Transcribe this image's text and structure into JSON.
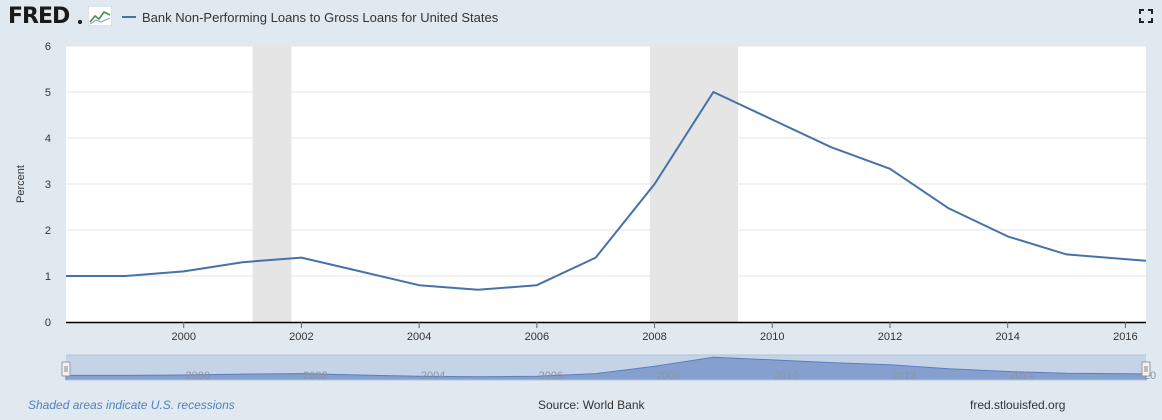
{
  "header": {
    "logo_text": "FRED",
    "legend_label": "Bank Non-Performing Loans to Gross Loans for United States"
  },
  "colors": {
    "series": "#4572a7",
    "recession": "#e5e5e5",
    "background": "#e1e9f0",
    "navigator_fill": "#c5d3e8",
    "navigator_area": "#6f8fc6"
  },
  "icons": [
    "fred-chart-icon",
    "fullscreen-icon"
  ],
  "footer": {
    "recession_note": "Shaded areas indicate U.S. recessions",
    "source": "Source: World Bank",
    "site": "fred.stlouisfed.org"
  },
  "chart_data": {
    "type": "line",
    "title": "",
    "xlabel": "",
    "ylabel": "Percent",
    "xlim": [
      1998,
      2016.35
    ],
    "ylim": [
      0,
      6
    ],
    "yticks": [
      0,
      1,
      2,
      3,
      4,
      5,
      6
    ],
    "xticks": [
      2000,
      2002,
      2004,
      2006,
      2008,
      2010,
      2012,
      2014,
      2016
    ],
    "grid": true,
    "legend": "top-left",
    "recessions": [
      [
        2001.17,
        2001.83
      ],
      [
        2007.92,
        2009.42
      ]
    ],
    "series": [
      {
        "name": "Bank Non-Performing Loans to Gross Loans for United States",
        "x": [
          1998,
          1999,
          2000,
          2001,
          2002,
          2003,
          2004,
          2005,
          2006,
          2007,
          2008,
          2009,
          2010,
          2011,
          2012,
          2013,
          2014,
          2015,
          2016.35
        ],
        "values": [
          1.0,
          1.0,
          1.1,
          1.3,
          1.4,
          1.1,
          0.8,
          0.7,
          0.8,
          1.4,
          3.0,
          5.0,
          4.4,
          3.8,
          3.33,
          2.47,
          1.86,
          1.47,
          1.33
        ]
      }
    ],
    "navigator": {
      "tick_labels": [
        "2000",
        "2002",
        "2004",
        "2006",
        "2008",
        "2010",
        "2012",
        "2014",
        "20"
      ]
    }
  }
}
